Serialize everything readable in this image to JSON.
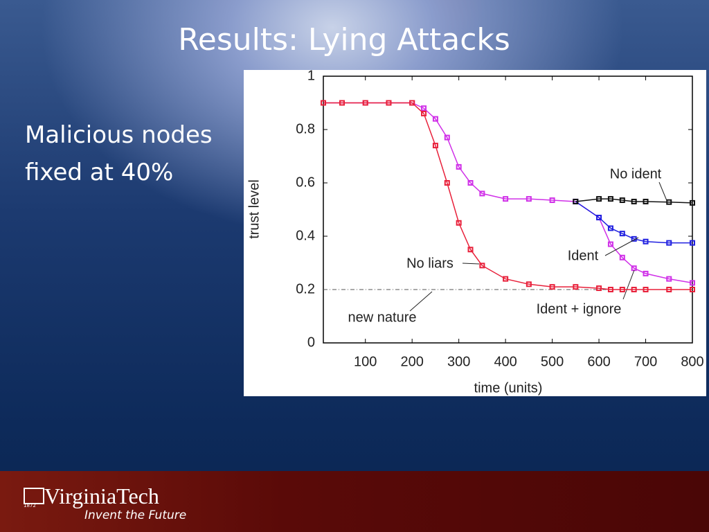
{
  "slide": {
    "title": "Results: Lying Attacks",
    "body": [
      "Malicious nodes",
      "fixed at 40%"
    ]
  },
  "footer": {
    "brand": "VirginiaTech",
    "tagline": "Invent the Future",
    "year": "1872"
  },
  "chart_data": {
    "type": "line",
    "xlabel": "time (units)",
    "ylabel": "trust level",
    "x": [
      10,
      50,
      100,
      150,
      200,
      225,
      250,
      275,
      300,
      325,
      350,
      400,
      450,
      500,
      550,
      600,
      625,
      650,
      675,
      700,
      750,
      800
    ],
    "xlim": [
      10,
      800
    ],
    "xticks": [
      100,
      200,
      300,
      400,
      500,
      600,
      700,
      800
    ],
    "ylim": [
      0,
      1
    ],
    "yticks": [
      0,
      0.2,
      0.4,
      0.6,
      0.8,
      1
    ],
    "series": [
      {
        "name": "Ident + ignore",
        "color": "#d030e8",
        "values": [
          0.9,
          0.9,
          0.9,
          0.9,
          0.9,
          0.88,
          0.84,
          0.77,
          0.66,
          0.6,
          0.56,
          0.54,
          0.54,
          0.535,
          0.53,
          0.47,
          0.37,
          0.32,
          0.28,
          0.26,
          0.24,
          0.225
        ]
      },
      {
        "name": "No liars",
        "color": "#e8203a",
        "values": [
          0.9,
          0.9,
          0.9,
          0.9,
          0.9,
          0.86,
          0.74,
          0.6,
          0.45,
          0.35,
          0.29,
          0.24,
          0.22,
          0.21,
          0.21,
          0.205,
          0.2,
          0.2,
          0.2,
          0.2,
          0.2,
          0.2
        ]
      },
      {
        "name": "Ident",
        "color": "#2020e0",
        "values": [
          null,
          null,
          null,
          null,
          null,
          null,
          null,
          null,
          null,
          null,
          null,
          null,
          null,
          null,
          0.53,
          0.47,
          0.43,
          0.41,
          0.39,
          0.38,
          0.375,
          0.375
        ]
      },
      {
        "name": "No ident",
        "color": "#111111",
        "values": [
          null,
          null,
          null,
          null,
          null,
          null,
          null,
          null,
          null,
          null,
          null,
          null,
          null,
          null,
          0.53,
          0.54,
          0.54,
          0.535,
          0.53,
          0.53,
          0.528,
          0.525
        ]
      }
    ],
    "reference": {
      "label": "new nature",
      "value": 0.2,
      "color": "#555555"
    }
  }
}
